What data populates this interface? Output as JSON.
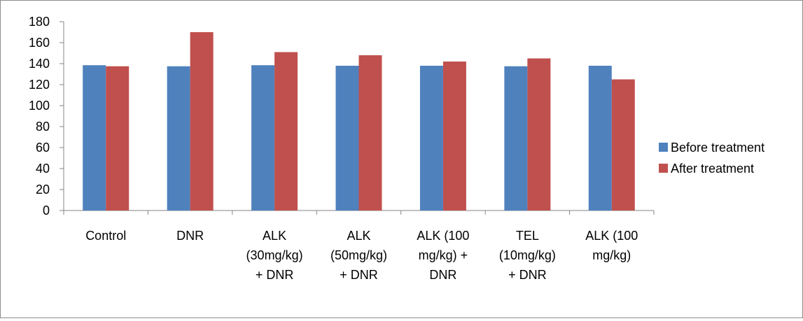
{
  "chart_data": {
    "type": "bar",
    "categories": [
      [
        "Control"
      ],
      [
        "DNR"
      ],
      [
        "ALK",
        "(30mg/kg)",
        "+ DNR"
      ],
      [
        "ALK",
        "(50mg/kg)",
        "+ DNR"
      ],
      [
        "ALK (100",
        "mg/kg) +",
        "DNR"
      ],
      [
        "TEL",
        "(10mg/kg)",
        "+ DNR"
      ],
      [
        "ALK (100",
        "mg/kg)"
      ]
    ],
    "series": [
      {
        "name": "Before treatment",
        "color": "#4f81bd",
        "values": [
          138.5,
          137.5,
          138.5,
          138,
          138,
          137.5,
          138
        ]
      },
      {
        "name": "After treatment",
        "color": "#c0504d",
        "values": [
          137.5,
          170,
          151,
          148,
          142,
          145,
          125
        ]
      }
    ],
    "ylim": [
      0,
      180
    ],
    "yticks": [
      0,
      20,
      40,
      60,
      80,
      100,
      120,
      140,
      160,
      180
    ],
    "grid": false,
    "legend_position": "right",
    "title": "",
    "xlabel": "",
    "ylabel": ""
  }
}
